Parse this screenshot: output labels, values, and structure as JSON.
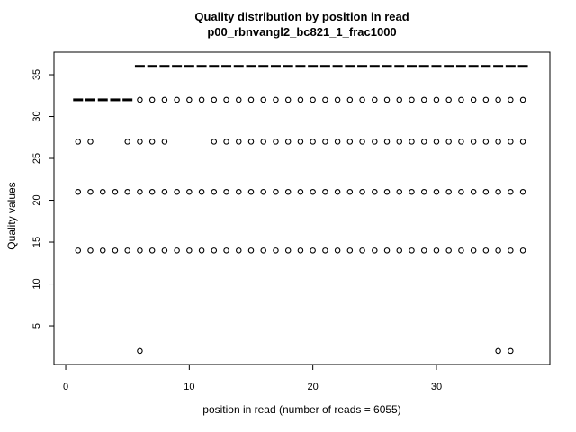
{
  "window": {
    "background": "#ffffff",
    "foreground": "#000000"
  },
  "chart_data": {
    "type": "scatter",
    "title": "Quality distribution by position in read",
    "subtitle": "p00_rbnvangl2_bc821_1_frac1000",
    "xlabel": "position in read (number of reads = 6055)",
    "ylabel": "Quality values",
    "x_ticks": [
      0,
      10,
      20,
      30
    ],
    "y_ticks": [
      5,
      10,
      15,
      20,
      25,
      30,
      35
    ],
    "xlim": [
      -0.95,
      39.18
    ],
    "ylim": [
      0.38,
      37.69
    ],
    "grid": false,
    "legend": "none",
    "marker_color": "#000000",
    "series": [
      {
        "name": "outlier-points",
        "marker": "circle",
        "quality_rows": [
          {
            "quality": 32,
            "positions": [
              6,
              7,
              8,
              9,
              10,
              11,
              12,
              13,
              14,
              15,
              16,
              17,
              18,
              19,
              20,
              21,
              22,
              23,
              24,
              25,
              26,
              27,
              28,
              29,
              30,
              31,
              32,
              33,
              34,
              35,
              36,
              37
            ]
          },
          {
            "quality": 27,
            "positions": [
              1,
              2,
              5,
              6,
              7,
              8,
              12,
              13,
              14,
              15,
              16,
              17,
              18,
              19,
              20,
              21,
              22,
              23,
              24,
              25,
              26,
              27,
              28,
              29,
              30,
              31,
              32,
              33,
              34,
              35,
              36,
              37
            ]
          },
          {
            "quality": 21,
            "positions": [
              1,
              2,
              3,
              4,
              5,
              6,
              7,
              8,
              9,
              10,
              11,
              12,
              13,
              14,
              15,
              16,
              17,
              18,
              19,
              20,
              21,
              22,
              23,
              24,
              25,
              26,
              27,
              28,
              29,
              30,
              31,
              32,
              33,
              34,
              35,
              36,
              37
            ]
          },
          {
            "quality": 14,
            "positions": [
              1,
              2,
              3,
              4,
              5,
              6,
              7,
              8,
              9,
              10,
              11,
              12,
              13,
              14,
              15,
              16,
              17,
              18,
              19,
              20,
              21,
              22,
              23,
              24,
              25,
              26,
              27,
              28,
              29,
              30,
              31,
              32,
              33,
              34,
              35,
              36,
              37
            ]
          },
          {
            "quality": 2,
            "positions": [
              6,
              35,
              36
            ]
          }
        ]
      },
      {
        "name": "median-dashes",
        "marker": "dash",
        "dash_width_units": 0.8,
        "quality_rows": [
          {
            "quality": 36,
            "positions": [
              6,
              7,
              8,
              9,
              10,
              11,
              12,
              13,
              14,
              15,
              16,
              17,
              18,
              19,
              20,
              21,
              22,
              23,
              24,
              25,
              26,
              27,
              28,
              29,
              30,
              31,
              32,
              33,
              34,
              35,
              36,
              37
            ]
          },
          {
            "quality": 32,
            "positions": [
              1,
              2,
              3,
              4,
              5
            ]
          }
        ]
      }
    ]
  }
}
